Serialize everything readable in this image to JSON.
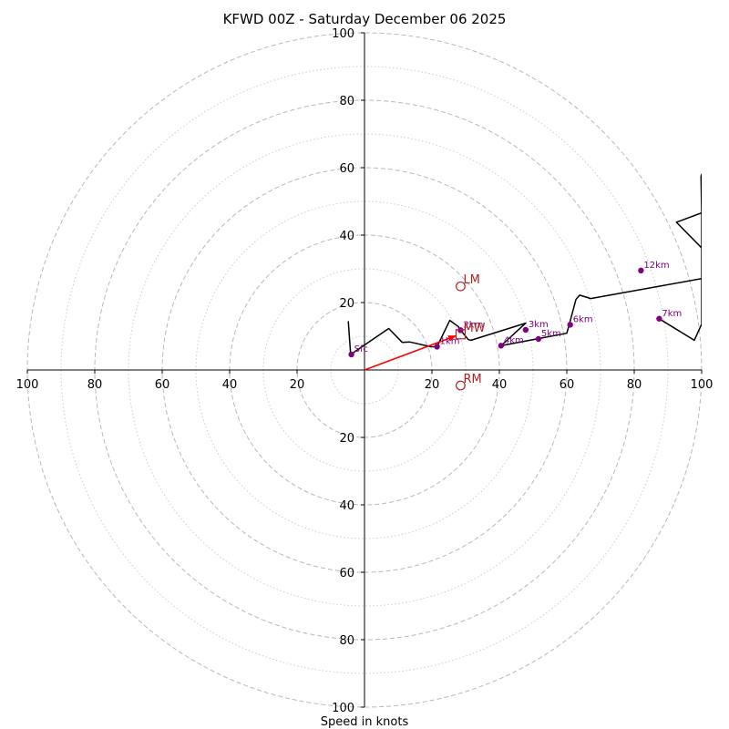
{
  "chart_data": {
    "type": "hodograph",
    "title": "KFWD 00Z - Saturday December 06 2025",
    "xlabel": "Speed in knots",
    "xlim": [
      -100,
      100
    ],
    "ylim": [
      -100,
      100
    ],
    "units": "knots",
    "x_tick_labels": [
      "100",
      "80",
      "60",
      "40",
      "20",
      "20",
      "40",
      "60",
      "80",
      "100"
    ],
    "y_tick_labels": [
      "100",
      "80",
      "60",
      "40",
      "20",
      "20",
      "40",
      "60",
      "80",
      "100"
    ],
    "tick_values": [
      -100,
      -80,
      -60,
      -40,
      -20,
      20,
      40,
      60,
      80,
      100
    ],
    "rings_major_knots": [
      20,
      40,
      60,
      80,
      100
    ],
    "rings_minor_knots": [
      10,
      30,
      50,
      70,
      90
    ],
    "colors": {
      "trace": "#000000",
      "height_marker": "#800080",
      "motion": "#b22222",
      "shear_vector": "#ff0000",
      "ring_major": "#b8b8b8",
      "ring_minor": "#cccccc"
    },
    "hodograph_trace": [
      [
        -4.8,
        14.5
      ],
      [
        -4.1,
        4.6
      ],
      [
        7.2,
        12.3
      ],
      [
        11.2,
        8.2
      ],
      [
        13.5,
        8.3
      ],
      [
        19.7,
        6.9
      ],
      [
        21.5,
        6.9
      ],
      [
        25.3,
        14.7
      ],
      [
        27.8,
        12.9
      ],
      [
        28.5,
        11.8
      ],
      [
        30.8,
        9.0
      ],
      [
        31.6,
        8.8
      ],
      [
        47.8,
        13.9
      ],
      [
        40.5,
        7.2
      ],
      [
        51.0,
        9.2
      ],
      [
        60.0,
        10.9
      ],
      [
        60.7,
        13.4
      ],
      [
        62.7,
        20.9
      ],
      [
        63.8,
        22.2
      ],
      [
        67.1,
        21.2
      ],
      [
        100.0,
        27.1
      ],
      [
        100.0,
        27.1
      ],
      [
        100.0,
        36.2
      ],
      [
        92.5,
        43.8
      ],
      [
        100.0,
        46.6
      ],
      [
        99.8,
        57.4
      ],
      [
        100.0,
        58.0
      ],
      [
        100.0,
        13.6
      ],
      [
        97.8,
        8.8
      ],
      [
        87.4,
        15.2
      ]
    ],
    "height_markers": [
      {
        "label": "Sfc",
        "u": -3.9,
        "v": 4.6
      },
      {
        "label": "1km",
        "u": 21.5,
        "v": 6.9
      },
      {
        "label": "2km",
        "u": 28.5,
        "v": 11.8
      },
      {
        "label": "3km",
        "u": 47.8,
        "v": 11.9
      },
      {
        "label": "4km",
        "u": 40.5,
        "v": 7.2
      },
      {
        "label": "5km",
        "u": 51.6,
        "v": 9.2
      },
      {
        "label": "6km",
        "u": 61.0,
        "v": 13.4
      },
      {
        "label": "7km",
        "u": 87.4,
        "v": 15.2
      },
      {
        "label": "12km",
        "u": 82.0,
        "v": 29.5
      }
    ],
    "storm_motions": [
      {
        "label": "LM",
        "u": 28.5,
        "v": 24.8,
        "marker": "circle"
      },
      {
        "label": "MW",
        "u": 28.5,
        "v": 10.6,
        "marker": "square"
      },
      {
        "label": "RM",
        "u": 28.5,
        "v": -4.6,
        "marker": "circle"
      }
    ],
    "shear_vector": {
      "from": [
        0,
        0
      ],
      "to": [
        27.3,
        10.2
      ]
    }
  }
}
